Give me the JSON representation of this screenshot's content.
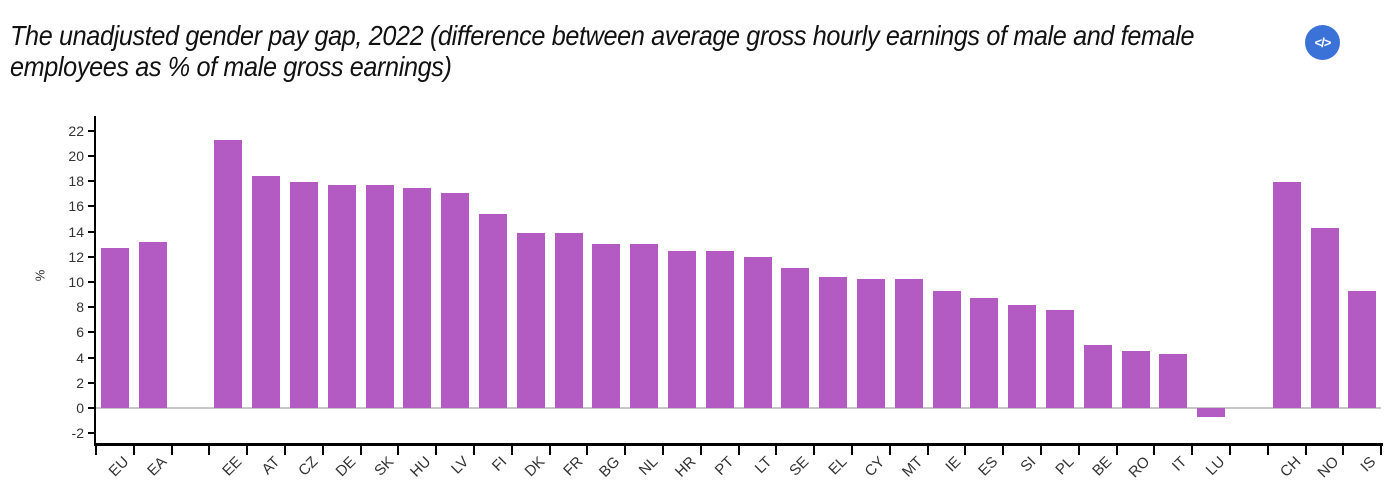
{
  "embed_button": {
    "label": "</>"
  },
  "chart_data": {
    "type": "bar",
    "title_line1": "The unadjusted gender pay gap, 2022 (difference between average gross hourly earnings of male and female",
    "title_line2": "employees as % of male gross earnings)",
    "ylabel": "%",
    "xlabel": "",
    "ylim": [
      -2.8,
      23.2
    ],
    "yticks": [
      22,
      20,
      18,
      16,
      14,
      12,
      10,
      8,
      6,
      4,
      2,
      0,
      -2
    ],
    "grid": "off",
    "legend": "none",
    "bar_color": "#b45ac3",
    "categories": [
      "EU",
      "EA",
      "",
      "EE",
      "AT",
      "CZ",
      "DE",
      "SK",
      "HU",
      "LV",
      "FI",
      "DK",
      "FR",
      "BG",
      "NL",
      "HR",
      "PT",
      "LT",
      "SE",
      "EL",
      "CY",
      "MT",
      "IE",
      "ES",
      "SI",
      "PL",
      "BE",
      "RO",
      "IT",
      "LU",
      "",
      "CH",
      "NO",
      "IS"
    ],
    "values": [
      12.7,
      13.2,
      null,
      21.3,
      18.4,
      17.9,
      17.7,
      17.7,
      17.5,
      17.1,
      15.4,
      13.9,
      13.9,
      13.0,
      13.0,
      12.5,
      12.5,
      12.0,
      11.1,
      10.4,
      10.2,
      10.2,
      9.3,
      8.7,
      8.2,
      7.8,
      5.0,
      4.5,
      4.3,
      -0.7,
      null,
      17.9,
      14.3,
      9.3
    ]
  }
}
